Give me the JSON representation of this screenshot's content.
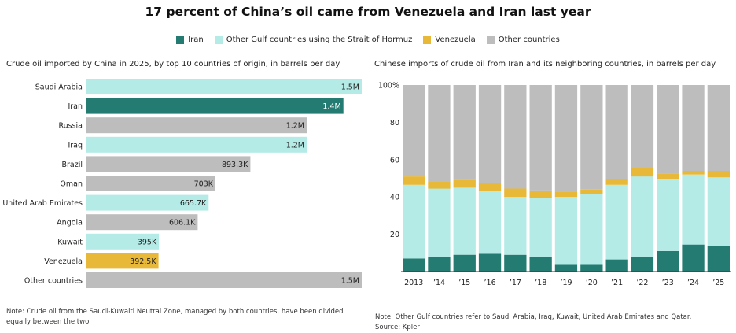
{
  "title": "17 percent of China’s oil came from Venezuela and Iran last year",
  "legend": [
    {
      "label": "Iran",
      "color": "#237b72"
    },
    {
      "label": "Other Gulf countries using the Strait of Hormuz",
      "color": "#b4ebe7"
    },
    {
      "label": "Venezuela",
      "color": "#e8b939"
    },
    {
      "label": "Other countries",
      "color": "#bdbdbd"
    }
  ],
  "left_subtitle": "Crude oil imported by China in 2025, by top 10 countries of origin, in barrels per day",
  "right_subtitle": "Chinese imports of crude oil from Iran and its neighboring countries, in barrels per day",
  "left_note": "Note: Crude oil from the Saudi-Kuwaiti Neutral Zone, managed by both countries, have been divided equally between the two.",
  "right_note": "Note: Other Gulf countries refer to Saudi Arabia, Iraq, Kuwait, United Arab Emirates and Qatar.",
  "source": "Source: Kpler",
  "chart_data": [
    {
      "type": "bar",
      "orientation": "horizontal",
      "title": "Crude oil imported by China in 2025, by top 10 countries of origin, in barrels per day",
      "categories": [
        "Saudi Arabia",
        "Iran",
        "Russia",
        "Iraq",
        "Brazil",
        "Oman",
        "United Arab Emirates",
        "Angola",
        "Kuwait",
        "Venezuela",
        "Other countries"
      ],
      "values": [
        1500000,
        1400000,
        1200000,
        1200000,
        893300,
        703000,
        665700,
        606100,
        395000,
        392500,
        1500000
      ],
      "labels": [
        "1.5M",
        "1.4M",
        "1.2M",
        "1.2M",
        "893.3K",
        "703K",
        "665.7K",
        "606.1K",
        "395K",
        "392.5K",
        "1.5M"
      ],
      "groups": [
        "gulf",
        "iran",
        "other",
        "gulf",
        "other",
        "other",
        "gulf",
        "other",
        "gulf",
        "venezuela",
        "other"
      ],
      "xlim": [
        0,
        1500000
      ]
    },
    {
      "type": "bar",
      "stacked": true,
      "title": "Chinese imports of crude oil from Iran and its neighboring countries, in barrels per day",
      "categories": [
        "2013",
        "’14",
        "’15",
        "’16",
        "’17",
        "’18",
        "’19",
        "’20",
        "’21",
        "’22",
        "’23",
        "’24",
        "’25"
      ],
      "ylim": [
        0,
        100
      ],
      "yticks": [
        "20",
        "40",
        "60",
        "80",
        "100%"
      ],
      "series": [
        {
          "name": "Iran",
          "values": [
            7,
            8,
            9,
            9.5,
            9,
            8,
            4,
            4,
            6.5,
            8,
            11,
            14.5,
            13.5
          ]
        },
        {
          "name": "Other Gulf countries using the Strait of Hormuz",
          "values": [
            39.5,
            36.5,
            36,
            33.5,
            31,
            31.5,
            36,
            37.5,
            40,
            43,
            38.5,
            37.5,
            37
          ]
        },
        {
          "name": "Venezuela",
          "values": [
            4.5,
            4,
            4,
            4.5,
            4.5,
            4,
            3,
            2.5,
            3,
            4.5,
            3,
            2,
            3.5
          ]
        },
        {
          "name": "Other countries",
          "values": [
            49,
            51.5,
            51,
            52.5,
            55.5,
            56.5,
            57,
            56,
            50.5,
            44.5,
            47.5,
            46,
            46
          ]
        }
      ]
    }
  ]
}
